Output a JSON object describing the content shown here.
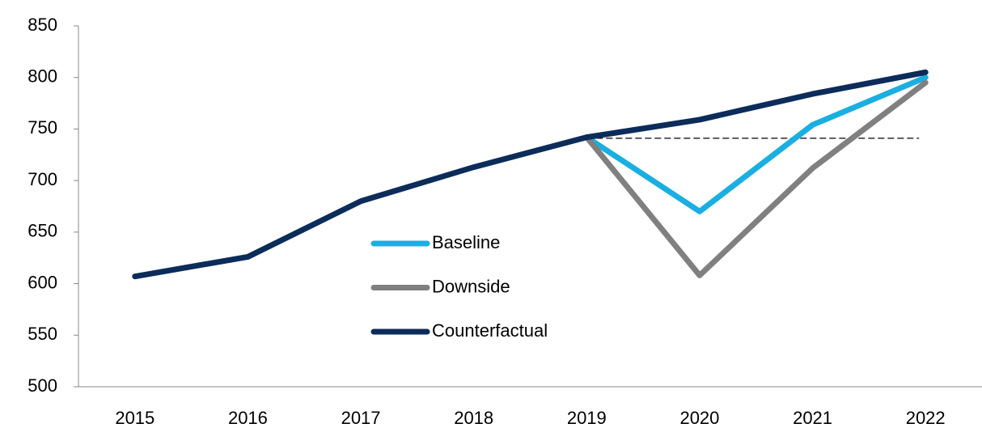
{
  "chart_data": {
    "type": "line",
    "categories": [
      "2015",
      "2016",
      "2017",
      "2018",
      "2019",
      "2020",
      "2021",
      "2022"
    ],
    "series": [
      {
        "name": "Baseline",
        "color": "#1aafe0",
        "values": [
          null,
          null,
          null,
          null,
          742,
          670,
          754,
          800
        ]
      },
      {
        "name": "Downside",
        "color": "#808080",
        "values": [
          null,
          null,
          null,
          null,
          742,
          608,
          712,
          795
        ]
      },
      {
        "name": "Counterfactual",
        "color": "#0c2c5a",
        "values": [
          607,
          626,
          680,
          713,
          742,
          759,
          784,
          805
        ]
      }
    ],
    "reference_line": {
      "value": 741,
      "from": "2019",
      "to": "2022"
    },
    "ylim": [
      500,
      850
    ],
    "yticks": [
      500,
      550,
      600,
      650,
      700,
      750,
      800,
      850
    ],
    "grid": false,
    "legend": "center"
  }
}
